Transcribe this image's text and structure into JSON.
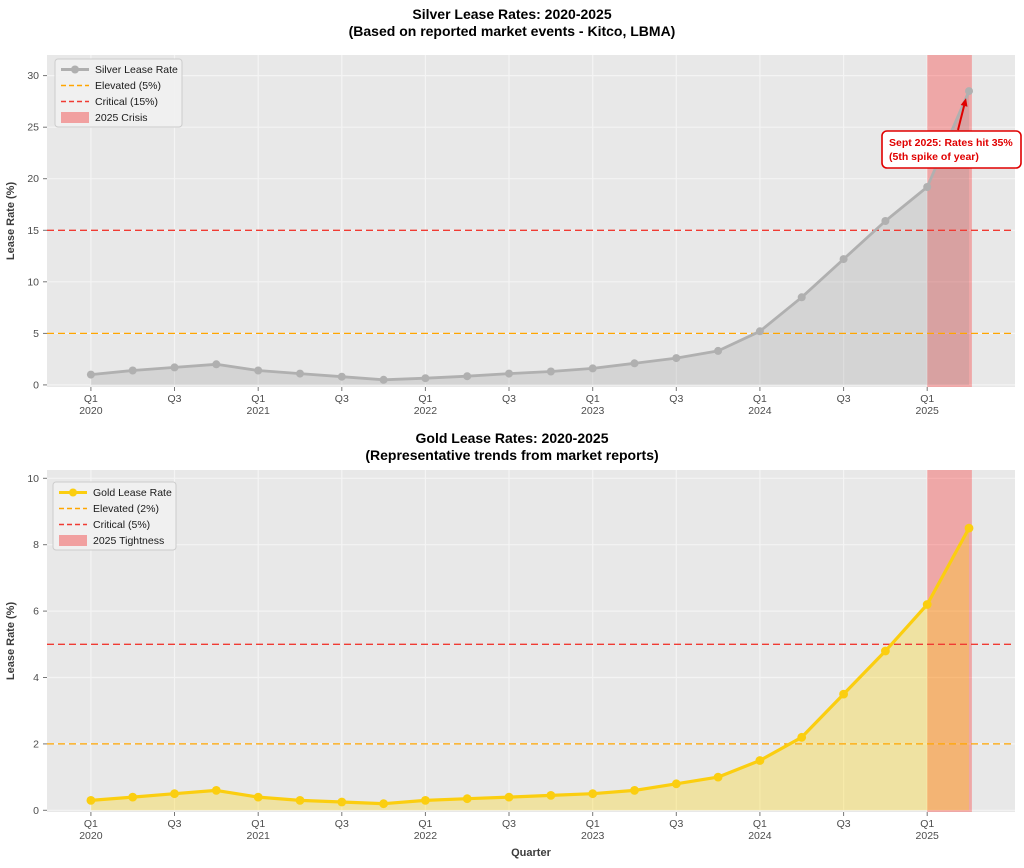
{
  "colors": {
    "background": "#ffffff",
    "plot_background": "#e8e8e8",
    "grid": "#f4f4f4",
    "tick_label": "#4d4d4d",
    "axis_label": "#3c3c3c",
    "legend_background": "#f0f0f0",
    "legend_border": "#cccccc"
  },
  "chart_data": [
    {
      "id": "silver",
      "type": "line",
      "title": "Silver Lease Rates: 2020-2025",
      "subtitle": "(Based on reported market events - Kitco, LBMA)",
      "xlabel": "",
      "ylabel": "Lease Rate (%)",
      "x": [
        "2020Q1",
        "2020Q2",
        "2020Q3",
        "2020Q4",
        "2021Q1",
        "2021Q2",
        "2021Q3",
        "2021Q4",
        "2022Q1",
        "2022Q2",
        "2022Q3",
        "2022Q4",
        "2023Q1",
        "2023Q2",
        "2023Q3",
        "2023Q4",
        "2024Q1",
        "2024Q2",
        "2024Q3",
        "2024Q4",
        "2025Q1",
        "2025Q2"
      ],
      "series": [
        {
          "name": "Silver Lease Rate",
          "color": "#b0b0b0",
          "fill": "rgba(140,140,140,0.22)",
          "values": [
            1.0,
            1.4,
            1.7,
            2.0,
            1.4,
            1.1,
            0.8,
            0.5,
            0.65,
            0.85,
            1.1,
            1.3,
            1.6,
            2.1,
            2.6,
            3.3,
            5.2,
            8.5,
            12.2,
            15.9,
            19.2,
            28.5
          ]
        }
      ],
      "hlines": [
        {
          "label": "Elevated (5%)",
          "y": 5,
          "color": "#FFA500"
        },
        {
          "label": "Critical (15%)",
          "y": 15,
          "color": "#F03B33"
        }
      ],
      "band": {
        "label": "2025 Crisis",
        "from_index": 20,
        "to_index": 21.07,
        "color": "#FF0000",
        "alpha": 0.28
      },
      "legend": [
        {
          "label": "Silver Lease Rate",
          "type": "line",
          "color": "#b0b0b0"
        },
        {
          "label": "Elevated (5%)",
          "type": "dash",
          "color": "#FFA500"
        },
        {
          "label": "Critical (15%)",
          "type": "dash",
          "color": "#F03B33"
        },
        {
          "label": "2025 Crisis",
          "type": "patch",
          "color": "#F1A0A0"
        }
      ],
      "legend_position": "upper-left",
      "grid": true,
      "ylim": [
        -0.2,
        32
      ],
      "yticks": [
        0,
        5,
        10,
        15,
        20,
        25,
        30
      ],
      "xtick_labels": [
        [
          "Q1",
          "2020"
        ],
        [
          "Q3",
          ""
        ],
        [
          "Q1",
          "2021"
        ],
        [
          "Q3",
          ""
        ],
        [
          "Q1",
          "2022"
        ],
        [
          "Q3",
          ""
        ],
        [
          "Q1",
          "2023"
        ],
        [
          "Q3",
          ""
        ],
        [
          "Q1",
          "2024"
        ],
        [
          "Q3",
          ""
        ],
        [
          "Q1",
          "2025"
        ]
      ],
      "annotation": {
        "line1": "Sept 2025: Rates hit 35%",
        "line2": "(5th spike of year)",
        "color": "#E00000",
        "target_index": 21,
        "target_value": 28.5
      }
    },
    {
      "id": "gold",
      "type": "line",
      "title": "Gold Lease Rates: 2020-2025",
      "subtitle": "(Representative trends from market reports)",
      "xlabel": "Quarter",
      "ylabel": "Lease Rate (%)",
      "x": [
        "2020Q1",
        "2020Q2",
        "2020Q3",
        "2020Q4",
        "2021Q1",
        "2021Q2",
        "2021Q3",
        "2021Q4",
        "2022Q1",
        "2022Q2",
        "2022Q3",
        "2022Q4",
        "2023Q1",
        "2023Q2",
        "2023Q3",
        "2023Q4",
        "2024Q1",
        "2024Q2",
        "2024Q3",
        "2024Q4",
        "2025Q1",
        "2025Q2"
      ],
      "series": [
        {
          "name": "Gold Lease Rate",
          "color": "#FBCE10",
          "fill": "rgba(255,212,0,0.30)",
          "values": [
            0.3,
            0.4,
            0.5,
            0.6,
            0.4,
            0.3,
            0.25,
            0.2,
            0.3,
            0.35,
            0.4,
            0.45,
            0.5,
            0.6,
            0.8,
            1.0,
            1.5,
            2.2,
            3.5,
            4.8,
            6.2,
            8.5
          ]
        }
      ],
      "hlines": [
        {
          "label": "Elevated (2%)",
          "y": 2,
          "color": "#FFA500"
        },
        {
          "label": "Critical (5%)",
          "y": 5,
          "color": "#F03B33"
        }
      ],
      "band": {
        "label": "2025 Tightness",
        "from_index": 20,
        "to_index": 21.07,
        "color": "#FF0000",
        "alpha": 0.28
      },
      "legend": [
        {
          "label": "Gold Lease Rate",
          "type": "line",
          "color": "#FBCE10"
        },
        {
          "label": "Elevated (2%)",
          "type": "dash",
          "color": "#FFA500"
        },
        {
          "label": "Critical (5%)",
          "type": "dash",
          "color": "#F03B33"
        },
        {
          "label": "2025 Tightness",
          "type": "patch",
          "color": "#F1A0A0"
        }
      ],
      "legend_position": "upper-left",
      "grid": true,
      "ylim": [
        -0.05,
        10.25
      ],
      "yticks": [
        0,
        2,
        4,
        6,
        8,
        10
      ],
      "xtick_labels": [
        [
          "Q1",
          "2020"
        ],
        [
          "Q3",
          ""
        ],
        [
          "Q1",
          "2021"
        ],
        [
          "Q3",
          ""
        ],
        [
          "Q1",
          "2022"
        ],
        [
          "Q3",
          ""
        ],
        [
          "Q1",
          "2023"
        ],
        [
          "Q3",
          ""
        ],
        [
          "Q1",
          "2024"
        ],
        [
          "Q3",
          ""
        ],
        [
          "Q1",
          "2025"
        ]
      ],
      "annotation": null
    }
  ]
}
